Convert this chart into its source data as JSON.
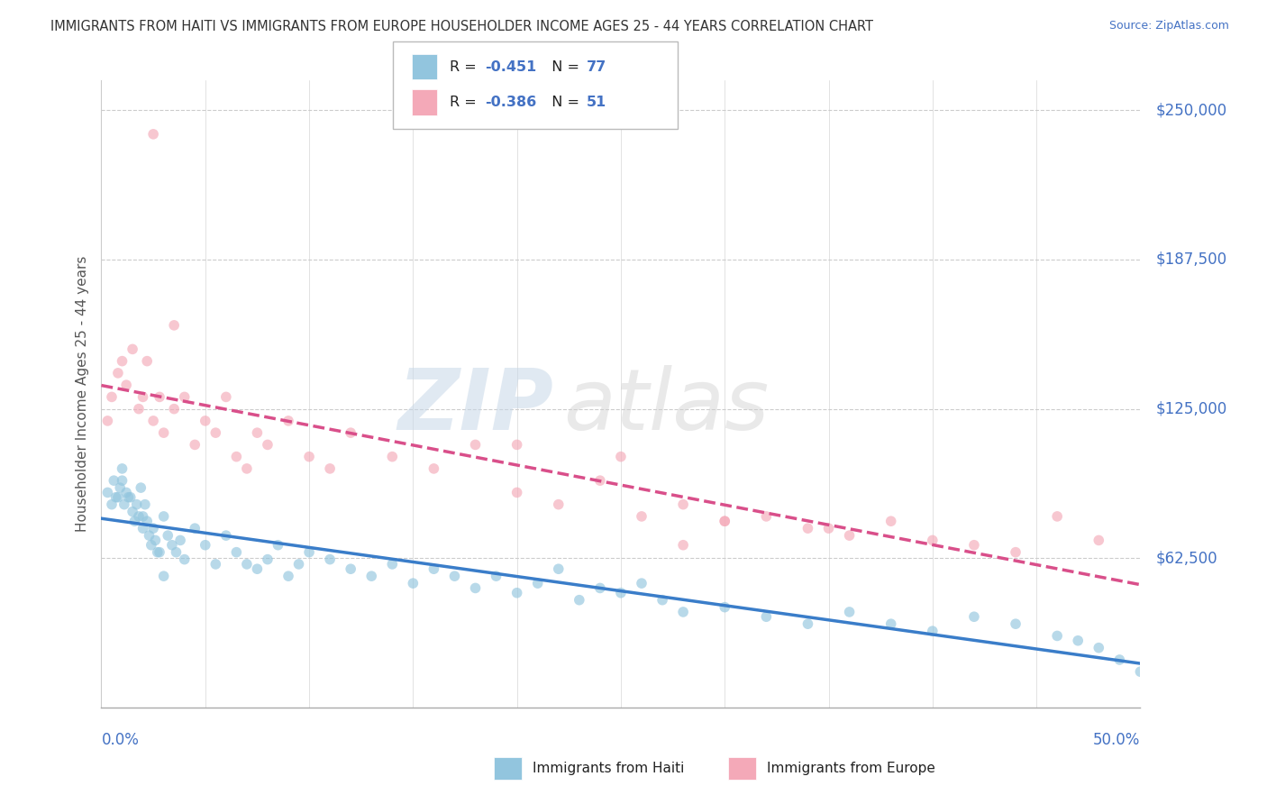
{
  "title": "IMMIGRANTS FROM HAITI VS IMMIGRANTS FROM EUROPE HOUSEHOLDER INCOME AGES 25 - 44 YEARS CORRELATION CHART",
  "source": "Source: ZipAtlas.com",
  "ylabel": "Householder Income Ages 25 - 44 years",
  "xlim": [
    0.0,
    50.0
  ],
  "ylim": [
    0,
    262500
  ],
  "haiti_color": "#92c5de",
  "europe_color": "#f4a9b8",
  "haiti_line_color": "#3a7dc9",
  "europe_line_color": "#d94f8a",
  "haiti_R": -0.451,
  "haiti_N": 77,
  "europe_R": -0.386,
  "europe_N": 51,
  "ytick_positions": [
    0,
    62500,
    125000,
    187500,
    250000
  ],
  "ytick_labels": [
    "",
    "$62,500",
    "$125,000",
    "$187,500",
    "$250,000"
  ],
  "watermark_zip": "ZIP",
  "watermark_atlas": "atlas",
  "background_color": "#ffffff",
  "grid_color": "#cccccc",
  "title_color": "#333333",
  "axis_label_color": "#4472c4",
  "legend_r_color": "#4472c4",
  "legend_n_color": "#4472c4",
  "haiti_x": [
    0.3,
    0.5,
    0.6,
    0.7,
    0.8,
    0.9,
    1.0,
    1.0,
    1.1,
    1.2,
    1.3,
    1.4,
    1.5,
    1.6,
    1.7,
    1.8,
    1.9,
    2.0,
    2.0,
    2.1,
    2.2,
    2.3,
    2.4,
    2.5,
    2.6,
    2.7,
    2.8,
    3.0,
    3.2,
    3.4,
    3.6,
    3.8,
    4.0,
    4.5,
    5.0,
    5.5,
    6.0,
    6.5,
    7.0,
    7.5,
    8.0,
    8.5,
    9.0,
    9.5,
    10.0,
    11.0,
    12.0,
    13.0,
    14.0,
    15.0,
    16.0,
    17.0,
    18.0,
    19.0,
    20.0,
    21.0,
    22.0,
    23.0,
    24.0,
    25.0,
    26.0,
    27.0,
    28.0,
    30.0,
    32.0,
    34.0,
    36.0,
    38.0,
    40.0,
    42.0,
    44.0,
    46.0,
    47.0,
    48.0,
    49.0,
    50.0,
    3.0
  ],
  "haiti_y": [
    90000,
    85000,
    95000,
    88000,
    88000,
    92000,
    100000,
    95000,
    85000,
    90000,
    88000,
    88000,
    82000,
    78000,
    85000,
    80000,
    92000,
    75000,
    80000,
    85000,
    78000,
    72000,
    68000,
    75000,
    70000,
    65000,
    65000,
    80000,
    72000,
    68000,
    65000,
    70000,
    62000,
    75000,
    68000,
    60000,
    72000,
    65000,
    60000,
    58000,
    62000,
    68000,
    55000,
    60000,
    65000,
    62000,
    58000,
    55000,
    60000,
    52000,
    58000,
    55000,
    50000,
    55000,
    48000,
    52000,
    58000,
    45000,
    50000,
    48000,
    52000,
    45000,
    40000,
    42000,
    38000,
    35000,
    40000,
    35000,
    32000,
    38000,
    35000,
    30000,
    28000,
    25000,
    20000,
    15000,
    55000
  ],
  "europe_x": [
    0.3,
    0.5,
    0.8,
    1.0,
    1.2,
    1.5,
    1.8,
    2.0,
    2.2,
    2.5,
    2.8,
    3.0,
    3.5,
    4.0,
    4.5,
    5.0,
    5.5,
    6.0,
    6.5,
    7.0,
    7.5,
    8.0,
    9.0,
    10.0,
    11.0,
    12.0,
    14.0,
    16.0,
    18.0,
    20.0,
    22.0,
    24.0,
    26.0,
    28.0,
    30.0,
    32.0,
    34.0,
    36.0,
    38.0,
    40.0,
    42.0,
    44.0,
    46.0,
    48.0,
    20.0,
    25.0,
    30.0,
    35.0,
    2.5,
    3.5,
    28.0
  ],
  "europe_y": [
    120000,
    130000,
    140000,
    145000,
    135000,
    150000,
    125000,
    130000,
    145000,
    120000,
    130000,
    115000,
    125000,
    130000,
    110000,
    120000,
    115000,
    130000,
    105000,
    100000,
    115000,
    110000,
    120000,
    105000,
    100000,
    115000,
    105000,
    100000,
    110000,
    90000,
    85000,
    95000,
    80000,
    85000,
    78000,
    80000,
    75000,
    72000,
    78000,
    70000,
    68000,
    65000,
    80000,
    70000,
    110000,
    105000,
    78000,
    75000,
    240000,
    160000,
    68000
  ]
}
